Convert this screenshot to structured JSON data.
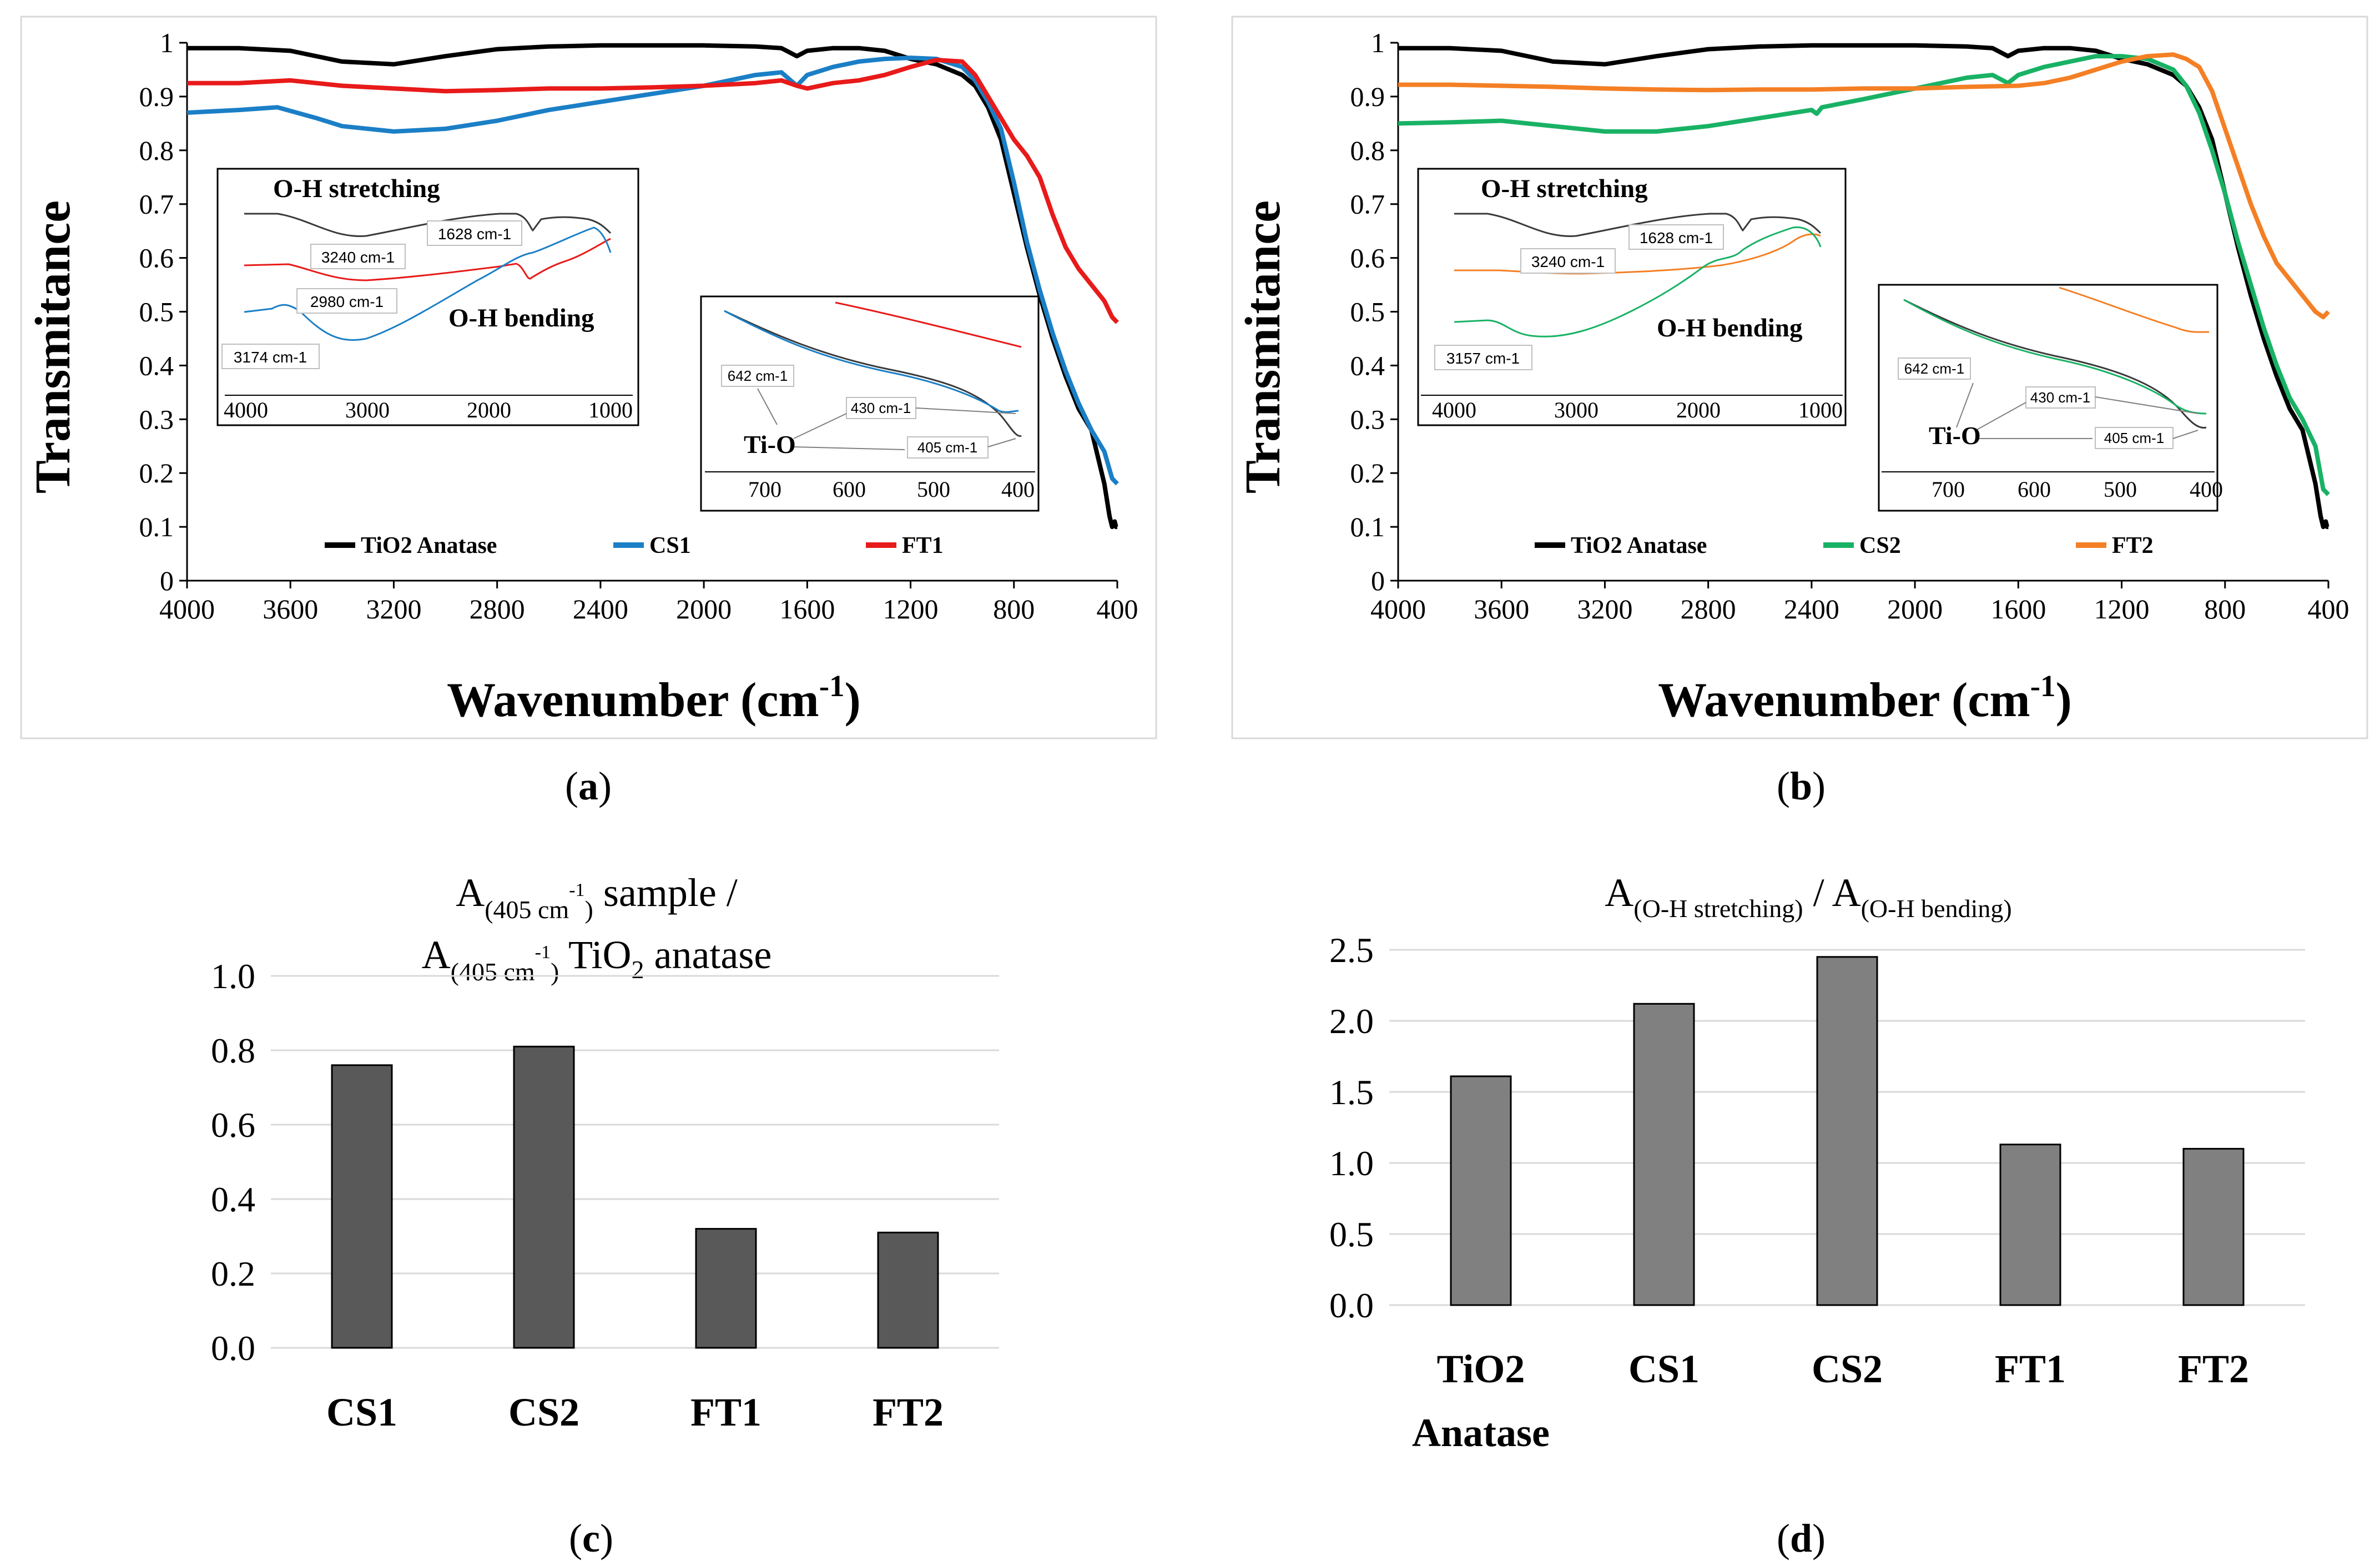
{
  "colors": {
    "tio2": "#000000",
    "cs1": "#1b7fc6",
    "ft1": "#e81a1a",
    "cs2": "#19b265",
    "ft2": "#f47f24",
    "bar_c": "#595959",
    "bar_d": "#808080",
    "grid": "#d9d9d9",
    "frame": "#bfbfbf"
  },
  "panels": {
    "a": {
      "caption": "a",
      "ylabel": "Transmitance",
      "xlabel_main": "Wavenumber (cm",
      "xlabel_sup": "-1",
      "xlabel_end": ")",
      "yticks": [
        "0",
        "0.1",
        "0.2",
        "0.3",
        "0.4",
        "0.5",
        "0.6",
        "0.7",
        "0.8",
        "0.9",
        "1"
      ],
      "xticks": [
        "4000",
        "3600",
        "3200",
        "2800",
        "2400",
        "2000",
        "1600",
        "1200",
        "800",
        "400"
      ],
      "legend": [
        "TiO2 Anatase",
        "CS1",
        "FT1"
      ],
      "inset1": {
        "title": "O-H stretching",
        "bending": "O-H bending",
        "labels": [
          "3240 cm-1",
          "1628 cm-1",
          "2980 cm-1",
          "3174 cm-1"
        ],
        "xticks": [
          "4000",
          "3000",
          "2000",
          "1000"
        ]
      },
      "inset2": {
        "labels": [
          "642  cm-1",
          "430 cm-1",
          "405  cm-1"
        ],
        "tio": "Ti-O",
        "xticks": [
          "700",
          "600",
          "500",
          "400"
        ]
      }
    },
    "b": {
      "caption": "b",
      "ylabel": "Transmitance",
      "xlabel_main": "Wavenumber (cm",
      "xlabel_sup": "-1",
      "xlabel_end": ")",
      "yticks": [
        "0",
        "0.1",
        "0.2",
        "0.3",
        "0.4",
        "0.5",
        "0.6",
        "0.7",
        "0.8",
        "0.9",
        "1"
      ],
      "xticks": [
        "4000",
        "3600",
        "3200",
        "2800",
        "2400",
        "2000",
        "1600",
        "1200",
        "800",
        "400"
      ],
      "legend": [
        "TiO2 Anatase",
        "CS2",
        "FT2"
      ],
      "inset1": {
        "title": "O-H stretching",
        "bending": "O-H bending",
        "labels": [
          "3240 cm-1",
          "1628 cm-1",
          "3157 cm-1"
        ],
        "xticks": [
          "4000",
          "3000",
          "2000",
          "1000"
        ]
      },
      "inset2": {
        "labels": [
          "642  cm-1",
          "430 cm-1",
          "405 cm-1"
        ],
        "tio": "Ti-O",
        "xticks": [
          "700",
          "600",
          "500",
          "400"
        ]
      }
    },
    "c": {
      "caption": "c",
      "title_line1_a": "A",
      "title_line1_sub": "(405 cm",
      "title_line1_subsup": "-1",
      "title_line1_subend": ")",
      "title_line1_b": " sample /",
      "title_line2_a": "A",
      "title_line2_sub": "(405 cm",
      "title_line2_subsup": "-1",
      "title_line2_subend": ")",
      "title_line2_b": " TiO",
      "title_line2_sub2": "2",
      "title_line2_c": " anatase",
      "yticks": [
        "0.0",
        "0.2",
        "0.4",
        "0.6",
        "0.8",
        "1.0"
      ]
    },
    "d": {
      "caption": "d",
      "title_a": "A",
      "title_sub1": "(O-H stretching)",
      "title_mid": "  / A",
      "title_sub2": "(O-H bending)",
      "yticks": [
        "0.0",
        "0.5",
        "1.0",
        "1.5",
        "2.0",
        "2.5"
      ],
      "category_line2": "Anatase"
    }
  },
  "chart_data": [
    {
      "id": "a",
      "type": "line",
      "title": "",
      "xlabel": "Wavenumber (cm-1)",
      "ylabel": "Transmitance",
      "xlim": [
        4000,
        400
      ],
      "ylim": [
        0,
        1
      ],
      "series": [
        {
          "name": "TiO2 Anatase",
          "color": "#000000",
          "x": [
            4000,
            3800,
            3600,
            3400,
            3200,
            3000,
            2800,
            2600,
            2400,
            2200,
            2000,
            1800,
            1700,
            1640,
            1600,
            1500,
            1400,
            1300,
            1200,
            1100,
            1000,
            950,
            900,
            850,
            800,
            750,
            700,
            650,
            600,
            550,
            500,
            450,
            430,
            420,
            410,
            405,
            400
          ],
          "y": [
            0.99,
            0.99,
            0.985,
            0.965,
            0.96,
            0.975,
            0.988,
            0.993,
            0.995,
            0.995,
            0.995,
            0.993,
            0.99,
            0.975,
            0.985,
            0.99,
            0.99,
            0.985,
            0.97,
            0.96,
            0.94,
            0.92,
            0.88,
            0.82,
            0.72,
            0.62,
            0.53,
            0.45,
            0.38,
            0.32,
            0.28,
            0.18,
            0.12,
            0.1,
            0.11,
            0.1,
            0.1
          ]
        },
        {
          "name": "CS1",
          "color": "#1b7fc6",
          "x": [
            4000,
            3800,
            3650,
            3500,
            3400,
            3200,
            3000,
            2800,
            2600,
            2400,
            2200,
            2000,
            1800,
            1700,
            1640,
            1600,
            1500,
            1400,
            1300,
            1200,
            1100,
            1000,
            950,
            900,
            850,
            800,
            750,
            700,
            650,
            600,
            550,
            500,
            450,
            420,
            400
          ],
          "y": [
            0.87,
            0.875,
            0.88,
            0.86,
            0.845,
            0.835,
            0.84,
            0.855,
            0.875,
            0.89,
            0.905,
            0.92,
            0.94,
            0.945,
            0.92,
            0.94,
            0.955,
            0.965,
            0.97,
            0.972,
            0.97,
            0.955,
            0.93,
            0.89,
            0.84,
            0.74,
            0.63,
            0.54,
            0.46,
            0.39,
            0.33,
            0.28,
            0.24,
            0.19,
            0.18
          ]
        },
        {
          "name": "FT1",
          "color": "#e81a1a",
          "x": [
            4000,
            3800,
            3600,
            3400,
            3200,
            3000,
            2800,
            2600,
            2400,
            2200,
            2000,
            1800,
            1700,
            1640,
            1600,
            1500,
            1400,
            1300,
            1200,
            1100,
            1000,
            950,
            900,
            850,
            800,
            750,
            700,
            650,
            600,
            550,
            500,
            450,
            420,
            400
          ],
          "y": [
            0.925,
            0.925,
            0.93,
            0.92,
            0.915,
            0.91,
            0.912,
            0.915,
            0.915,
            0.917,
            0.92,
            0.925,
            0.93,
            0.92,
            0.915,
            0.925,
            0.93,
            0.94,
            0.955,
            0.968,
            0.965,
            0.94,
            0.9,
            0.86,
            0.82,
            0.79,
            0.75,
            0.68,
            0.62,
            0.58,
            0.55,
            0.52,
            0.49,
            0.48
          ]
        }
      ]
    },
    {
      "id": "b",
      "type": "line",
      "title": "",
      "xlabel": "Wavenumber (cm-1)",
      "ylabel": "Transmitance",
      "xlim": [
        4000,
        400
      ],
      "ylim": [
        0,
        1
      ],
      "series": [
        {
          "name": "TiO2 Anatase",
          "color": "#000000",
          "x": [
            4000,
            3800,
            3600,
            3400,
            3200,
            3000,
            2800,
            2600,
            2400,
            2200,
            2000,
            1800,
            1700,
            1640,
            1600,
            1500,
            1400,
            1300,
            1200,
            1100,
            1000,
            950,
            900,
            850,
            800,
            750,
            700,
            650,
            600,
            550,
            500,
            450,
            430,
            420,
            410,
            405,
            400
          ],
          "y": [
            0.99,
            0.99,
            0.985,
            0.965,
            0.96,
            0.975,
            0.988,
            0.993,
            0.995,
            0.995,
            0.995,
            0.993,
            0.99,
            0.975,
            0.985,
            0.99,
            0.99,
            0.985,
            0.97,
            0.96,
            0.94,
            0.92,
            0.88,
            0.82,
            0.72,
            0.62,
            0.53,
            0.45,
            0.38,
            0.32,
            0.28,
            0.18,
            0.12,
            0.1,
            0.11,
            0.1,
            0.1
          ]
        },
        {
          "name": "CS2",
          "color": "#19b265",
          "x": [
            4000,
            3800,
            3600,
            3400,
            3200,
            3000,
            2800,
            2600,
            2400,
            2380,
            2360,
            2200,
            2000,
            1800,
            1700,
            1640,
            1600,
            1500,
            1400,
            1300,
            1200,
            1100,
            1000,
            950,
            900,
            850,
            800,
            750,
            700,
            650,
            600,
            550,
            500,
            450,
            420,
            400
          ],
          "y": [
            0.85,
            0.852,
            0.855,
            0.845,
            0.835,
            0.835,
            0.845,
            0.86,
            0.875,
            0.868,
            0.88,
            0.895,
            0.915,
            0.935,
            0.94,
            0.925,
            0.94,
            0.955,
            0.965,
            0.975,
            0.975,
            0.97,
            0.95,
            0.92,
            0.87,
            0.8,
            0.72,
            0.63,
            0.55,
            0.47,
            0.4,
            0.34,
            0.3,
            0.25,
            0.17,
            0.16
          ]
        },
        {
          "name": "FT2",
          "color": "#f47f24",
          "x": [
            4000,
            3800,
            3600,
            3400,
            3200,
            3000,
            2800,
            2600,
            2400,
            2200,
            2000,
            1800,
            1600,
            1500,
            1400,
            1300,
            1200,
            1100,
            1000,
            950,
            900,
            850,
            800,
            750,
            700,
            650,
            600,
            550,
            500,
            450,
            420,
            400
          ],
          "y": [
            0.922,
            0.922,
            0.92,
            0.918,
            0.915,
            0.913,
            0.912,
            0.913,
            0.913,
            0.915,
            0.915,
            0.918,
            0.92,
            0.925,
            0.935,
            0.95,
            0.965,
            0.975,
            0.978,
            0.97,
            0.955,
            0.91,
            0.84,
            0.77,
            0.7,
            0.64,
            0.59,
            0.56,
            0.53,
            0.5,
            0.49,
            0.5
          ]
        }
      ]
    },
    {
      "id": "c",
      "type": "bar",
      "title": "A(405 cm-1) sample / A(405 cm-1) TiO2 anatase",
      "categories": [
        "CS1",
        "CS2",
        "FT1",
        "FT2"
      ],
      "values": [
        0.76,
        0.81,
        0.32,
        0.31
      ],
      "ylim": [
        0,
        1.0
      ],
      "grid": true
    },
    {
      "id": "d",
      "type": "bar",
      "title": "A(O-H stretching) / A(O-H bending)",
      "categories": [
        "TiO2",
        "CS1",
        "CS2",
        "FT1",
        "FT2"
      ],
      "values": [
        1.61,
        2.12,
        2.45,
        1.13,
        1.1
      ],
      "ylim": [
        0,
        2.5
      ],
      "grid": true
    }
  ]
}
